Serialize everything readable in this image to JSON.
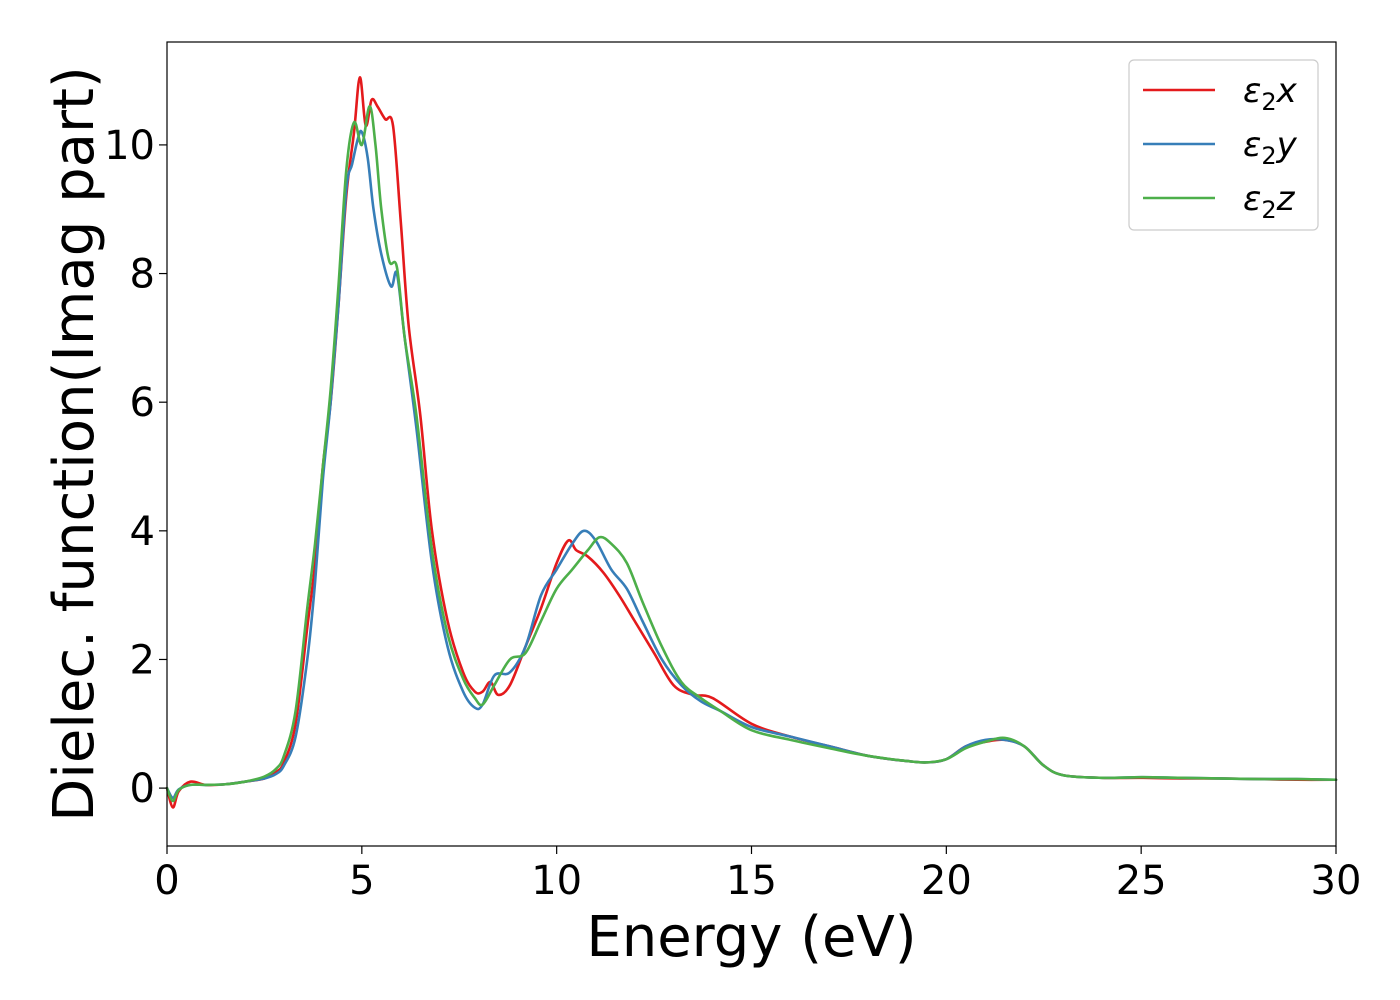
{
  "chart_data": {
    "type": "line",
    "xlabel": "Energy (eV)",
    "ylabel": "Dielec. function(Imag part)",
    "xlim": [
      0,
      30
    ],
    "ylim": [
      -0.9,
      11.6
    ],
    "xticks": [
      0,
      5,
      10,
      15,
      20,
      25,
      30
    ],
    "xtick_labels": [
      "0",
      "5",
      "10",
      "15",
      "20",
      "25",
      "30"
    ],
    "yticks": [
      0,
      2,
      4,
      6,
      8,
      10
    ],
    "ytick_labels": [
      "0",
      "2",
      "4",
      "6",
      "8",
      "10"
    ],
    "grid": false,
    "legend": "top-right",
    "series": [
      {
        "name": "ε2x",
        "legend_main": "ε",
        "legend_sub": "2",
        "legend_tail": "x",
        "color": "#e41a1c",
        "x": [
          0,
          0.15,
          0.3,
          0.6,
          1.0,
          1.5,
          2.0,
          2.5,
          2.8,
          3.0,
          3.3,
          3.6,
          3.8,
          4.0,
          4.2,
          4.4,
          4.6,
          4.8,
          4.95,
          5.1,
          5.25,
          5.4,
          5.6,
          5.8,
          6.0,
          6.2,
          6.5,
          6.8,
          7.2,
          7.6,
          7.9,
          8.1,
          8.3,
          8.5,
          8.8,
          9.2,
          9.6,
          10.0,
          10.3,
          10.5,
          10.8,
          11.2,
          11.6,
          12.0,
          12.5,
          13.0,
          13.5,
          14.0,
          15.0,
          16.0,
          17.0,
          18.0,
          19.0,
          19.5,
          20.0,
          20.5,
          21.0,
          21.5,
          22.0,
          22.5,
          23.0,
          24.0,
          25.0,
          26.0,
          27.0,
          28.0,
          29.0,
          30.0
        ],
        "y": [
          0.0,
          -0.3,
          -0.05,
          0.1,
          0.05,
          0.06,
          0.1,
          0.15,
          0.25,
          0.4,
          1.0,
          2.5,
          3.5,
          5.0,
          6.0,
          7.5,
          9.2,
          10.2,
          11.05,
          10.3,
          10.7,
          10.6,
          10.4,
          10.3,
          8.8,
          7.2,
          5.8,
          4.0,
          2.6,
          1.8,
          1.5,
          1.5,
          1.65,
          1.45,
          1.6,
          2.2,
          2.8,
          3.5,
          3.85,
          3.7,
          3.6,
          3.35,
          3.0,
          2.6,
          2.1,
          1.6,
          1.45,
          1.4,
          1.0,
          0.8,
          0.65,
          0.5,
          0.42,
          0.4,
          0.45,
          0.65,
          0.72,
          0.75,
          0.65,
          0.35,
          0.2,
          0.16,
          0.16,
          0.15,
          0.15,
          0.14,
          0.13,
          0.13
        ]
      },
      {
        "name": "ε2y",
        "legend_main": "ε",
        "legend_sub": "2",
        "legend_tail": "y",
        "color": "#377eb8",
        "x": [
          0,
          0.15,
          0.3,
          0.6,
          1.0,
          1.5,
          2.0,
          2.5,
          2.8,
          3.0,
          3.3,
          3.6,
          3.8,
          4.0,
          4.2,
          4.4,
          4.6,
          4.75,
          4.9,
          5.0,
          5.15,
          5.3,
          5.5,
          5.75,
          5.9,
          6.1,
          6.4,
          6.8,
          7.2,
          7.6,
          7.9,
          8.1,
          8.4,
          8.8,
          9.2,
          9.6,
          10.0,
          10.4,
          10.7,
          11.0,
          11.4,
          11.8,
          12.2,
          12.7,
          13.2,
          13.7,
          14.2,
          15.0,
          16.0,
          17.0,
          18.0,
          19.0,
          19.5,
          20.0,
          20.5,
          21.0,
          21.5,
          22.0,
          22.5,
          23.0,
          24.0,
          25.0,
          26.0,
          27.0,
          28.0,
          29.0,
          30.0
        ],
        "y": [
          0.0,
          -0.15,
          -0.02,
          0.05,
          0.05,
          0.06,
          0.1,
          0.15,
          0.22,
          0.35,
          0.8,
          2.0,
          3.2,
          4.8,
          6.0,
          7.5,
          9.3,
          9.7,
          10.1,
          10.2,
          9.8,
          9.0,
          8.3,
          7.8,
          8.0,
          7.0,
          5.6,
          3.5,
          2.2,
          1.5,
          1.25,
          1.3,
          1.75,
          1.8,
          2.2,
          3.0,
          3.4,
          3.8,
          4.0,
          3.85,
          3.4,
          3.1,
          2.6,
          2.0,
          1.6,
          1.35,
          1.2,
          0.95,
          0.8,
          0.65,
          0.5,
          0.42,
          0.4,
          0.45,
          0.65,
          0.75,
          0.75,
          0.65,
          0.35,
          0.2,
          0.16,
          0.17,
          0.16,
          0.15,
          0.14,
          0.14,
          0.13
        ]
      },
      {
        "name": "ε2z",
        "legend_main": "ε",
        "legend_sub": "2",
        "legend_tail": "z",
        "color": "#4daf4a",
        "x": [
          0,
          0.15,
          0.3,
          0.6,
          1.0,
          1.5,
          2.0,
          2.5,
          2.8,
          3.0,
          3.3,
          3.6,
          3.8,
          4.0,
          4.2,
          4.4,
          4.6,
          4.8,
          5.0,
          5.2,
          5.35,
          5.5,
          5.7,
          5.9,
          6.1,
          6.4,
          6.8,
          7.2,
          7.6,
          7.9,
          8.1,
          8.4,
          8.8,
          9.2,
          9.6,
          10.0,
          10.4,
          10.8,
          11.1,
          11.4,
          11.8,
          12.2,
          12.7,
          13.2,
          13.7,
          14.2,
          15.0,
          16.0,
          17.0,
          18.0,
          19.0,
          19.5,
          20.0,
          20.5,
          21.0,
          21.5,
          22.0,
          22.5,
          23.0,
          24.0,
          25.0,
          26.0,
          27.0,
          28.0,
          29.0,
          30.0
        ],
        "y": [
          0.0,
          -0.2,
          -0.03,
          0.05,
          0.05,
          0.06,
          0.1,
          0.18,
          0.3,
          0.5,
          1.2,
          2.8,
          3.8,
          5.0,
          6.2,
          7.8,
          9.6,
          10.35,
          10.0,
          10.6,
          10.0,
          9.0,
          8.2,
          8.1,
          7.0,
          5.8,
          3.7,
          2.4,
          1.7,
          1.4,
          1.3,
          1.6,
          2.0,
          2.1,
          2.6,
          3.1,
          3.4,
          3.7,
          3.9,
          3.8,
          3.5,
          2.9,
          2.2,
          1.65,
          1.4,
          1.2,
          0.9,
          0.75,
          0.62,
          0.5,
          0.42,
          0.4,
          0.45,
          0.62,
          0.72,
          0.78,
          0.65,
          0.35,
          0.2,
          0.16,
          0.17,
          0.16,
          0.15,
          0.14,
          0.14,
          0.13
        ]
      }
    ]
  }
}
